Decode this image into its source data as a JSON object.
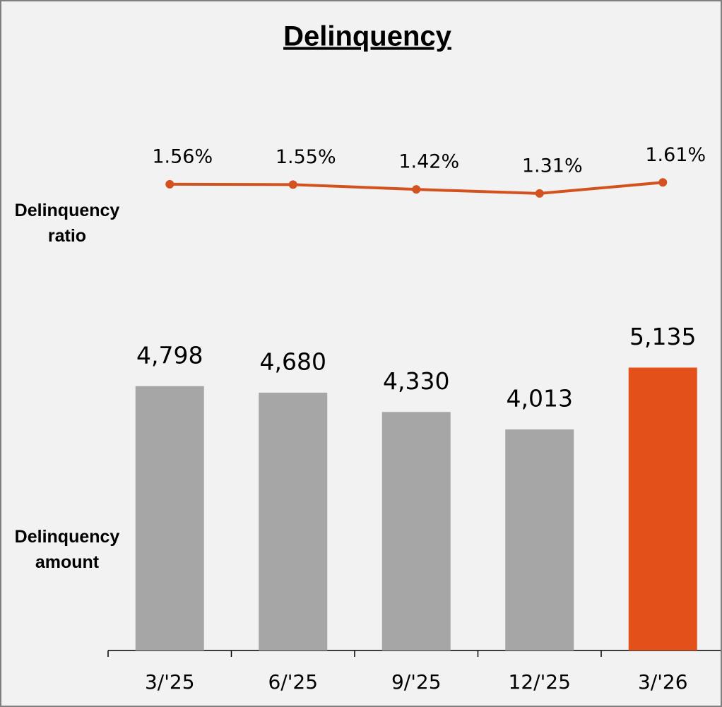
{
  "chart_data": {
    "type": "bar",
    "title": "Delinquency",
    "categories": [
      "3/'25",
      "6/'25",
      "9/'25",
      "12/'25",
      "3/'26"
    ],
    "series": [
      {
        "name": "Delinquency amount",
        "type": "bar",
        "colors": [
          "#a6a6a6",
          "#a6a6a6",
          "#a6a6a6",
          "#a6a6a6",
          "#e4501a"
        ],
        "values": [
          4798,
          4680,
          4330,
          4013,
          5135
        ],
        "value_labels": [
          "4,798",
          "4,680",
          "4,330",
          "4,013",
          "5,135"
        ]
      },
      {
        "name": "Delinquency ratio",
        "type": "line",
        "axis": "y2",
        "color": "#d4521f",
        "values": [
          1.56,
          1.55,
          1.42,
          1.31,
          1.61
        ],
        "value_labels": [
          "1.56%",
          "1.55%",
          "1.42%",
          "1.31%",
          "1.61%"
        ]
      }
    ],
    "ylim": [
      0,
      10000
    ],
    "y2lim": [
      1,
      2
    ]
  }
}
